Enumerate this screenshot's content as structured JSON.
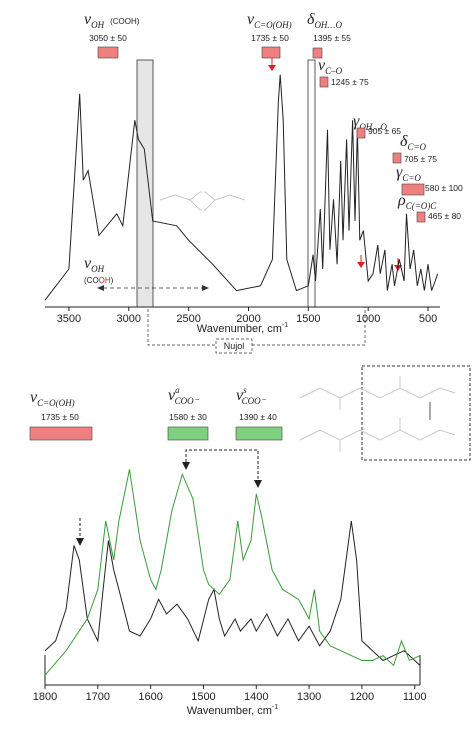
{
  "chart_data": [
    {
      "type": "line",
      "color": "#222222",
      "xlabel": "Wavenumber, cm",
      "xlabel_sup": "-1",
      "xlim": [
        3700,
        400
      ],
      "ylim": [
        0,
        100
      ],
      "xticks": [
        3500,
        3000,
        2500,
        2000,
        1500,
        1000,
        500
      ],
      "x": [
        3700,
        3500,
        3410,
        3380,
        3340,
        3250,
        3100,
        3050,
        2950,
        2920,
        2870,
        2800,
        2600,
        2500,
        2300,
        2100,
        1900,
        1800,
        1750,
        1735,
        1710,
        1680,
        1600,
        1500,
        1460,
        1440,
        1400,
        1380,
        1340,
        1320,
        1290,
        1260,
        1230,
        1210,
        1180,
        1160,
        1130,
        1110,
        1090,
        1070,
        1040,
        1000,
        960,
        920,
        900,
        860,
        840,
        800,
        780,
        740,
        700,
        680,
        650,
        620,
        590,
        560,
        530,
        500,
        470,
        440,
        420
      ],
      "values": [
        2,
        15,
        88,
        52,
        56,
        29,
        38,
        33,
        77,
        69,
        65,
        35,
        33,
        27,
        17,
        6,
        8,
        19,
        85,
        96,
        77,
        19,
        6,
        8,
        21,
        10,
        40,
        15,
        73,
        23,
        44,
        17,
        60,
        27,
        69,
        31,
        77,
        35,
        73,
        27,
        31,
        10,
        13,
        25,
        13,
        23,
        6,
        17,
        8,
        19,
        10,
        38,
        15,
        23,
        8,
        15,
        6,
        17,
        6,
        10,
        13
      ],
      "annotations": [
        {
          "symbol": "ν",
          "sub": "OH",
          "note": "(COOH)",
          "range": "3050 ± 50"
        },
        {
          "symbol": "ν",
          "sub": "C=O(OH)",
          "range": "1735 ± 50"
        },
        {
          "symbol": "δ",
          "sub": "OH…O",
          "range": "1395 ± 55"
        },
        {
          "symbol": "ν",
          "sub": "C–O",
          "range": "1245 ± 75"
        },
        {
          "symbol": "γ",
          "sub": "OH…O",
          "range": "905 ± 65"
        },
        {
          "symbol": "δ",
          "sub": "C=O",
          "range": "705 ± 75"
        },
        {
          "symbol": "γ",
          "sub": "C=O",
          "range": "580 ± 100"
        },
        {
          "symbol": "ρ",
          "sub": "C(=O)C",
          "range": "465 ± 80"
        }
      ],
      "overlay_label": {
        "symbol": "ν",
        "sub": "OH",
        "note_start": "(CO",
        "note_red": "OH",
        "note_end": ")"
      },
      "box_label": "Nujol"
    },
    {
      "type": "line",
      "xlabel": "Wavenumber, cm",
      "xlabel_sup": "-1",
      "xlim": [
        1800,
        1090
      ],
      "ylim": [
        0,
        100
      ],
      "xticks": [
        1800,
        1700,
        1600,
        1500,
        1400,
        1300,
        1200,
        1100
      ],
      "series": [
        {
          "color": "#222222",
          "x": [
            1800,
            1780,
            1760,
            1745,
            1735,
            1720,
            1700,
            1690,
            1680,
            1670,
            1660,
            1640,
            1620,
            1600,
            1585,
            1570,
            1550,
            1530,
            1510,
            1490,
            1480,
            1470,
            1460,
            1440,
            1430,
            1410,
            1400,
            1380,
            1360,
            1340,
            1320,
            1300,
            1280,
            1260,
            1240,
            1220,
            1210,
            1200,
            1180,
            1160,
            1140,
            1120,
            1100,
            1090
          ],
          "values": [
            14,
            18,
            31,
            57,
            51,
            27,
            18,
            39,
            59,
            47,
            39,
            22,
            20,
            27,
            35,
            29,
            33,
            27,
            18,
            35,
            39,
            27,
            20,
            27,
            22,
            27,
            22,
            29,
            20,
            27,
            18,
            24,
            16,
            22,
            35,
            67,
            51,
            18,
            14,
            10,
            12,
            14,
            10,
            8
          ]
        },
        {
          "color": "#3a9a3a",
          "x": [
            1800,
            1760,
            1720,
            1700,
            1685,
            1670,
            1660,
            1640,
            1620,
            1600,
            1590,
            1580,
            1560,
            1540,
            1520,
            1500,
            1490,
            1470,
            1450,
            1435,
            1425,
            1410,
            1400,
            1390,
            1370,
            1350,
            1320,
            1300,
            1290,
            1280,
            1260,
            1240,
            1220,
            1200,
            1180,
            1160,
            1140,
            1125,
            1110,
            1090
          ],
          "values": [
            4,
            14,
            27,
            39,
            67,
            51,
            67,
            88,
            59,
            43,
            39,
            47,
            71,
            86,
            76,
            47,
            41,
            37,
            43,
            67,
            51,
            59,
            78,
            69,
            47,
            39,
            35,
            27,
            39,
            22,
            16,
            14,
            12,
            10,
            10,
            12,
            8,
            18,
            10,
            12
          ]
        }
      ],
      "annotations": [
        {
          "symbol": "ν",
          "sub": "C=O(OH)",
          "range": "1735 ± 50"
        },
        {
          "symbol": "ν",
          "sup": "a",
          "sub": "COO⁻",
          "range": "1580 ± 30"
        },
        {
          "symbol": "ν",
          "sup": "s",
          "sub": "COO⁻",
          "range": "1390 ± 40"
        }
      ]
    }
  ]
}
